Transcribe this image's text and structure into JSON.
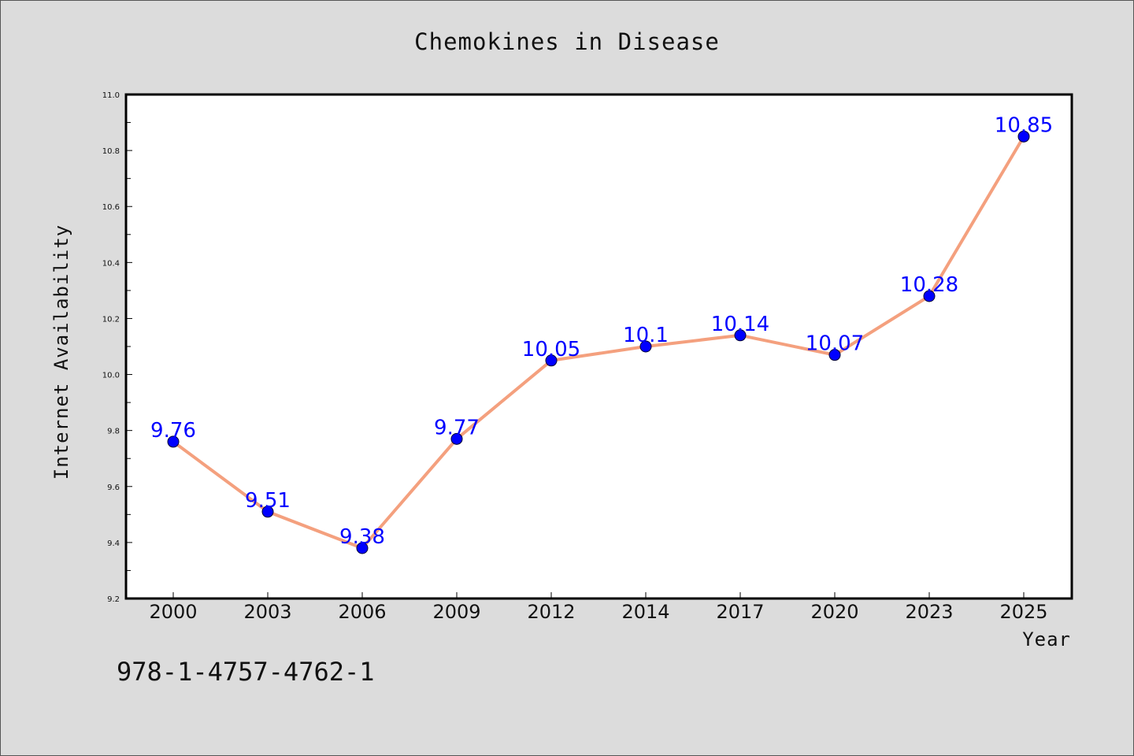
{
  "chart_data": {
    "type": "line",
    "title": "Chemokines in Disease",
    "xlabel": "Year",
    "ylabel": "Internet Availability",
    "categories": [
      "2000",
      "2003",
      "2006",
      "2009",
      "2012",
      "2014",
      "2017",
      "2020",
      "2023",
      "2025"
    ],
    "series": [
      {
        "values": [
          9.76,
          9.51,
          9.38,
          9.77,
          10.05,
          10.1,
          10.14,
          10.07,
          10.28,
          10.85
        ],
        "labels": [
          "9.76",
          "9.51",
          "9.38",
          "9.77",
          "10.05",
          "10.1",
          "10.14",
          "10.07",
          "10.28",
          "10.85"
        ]
      }
    ],
    "ylim": [
      9.2,
      11.0
    ],
    "yticks": [
      "9.2",
      "9.4",
      "9.6",
      "9.8",
      "10.0",
      "10.2",
      "10.4",
      "10.6",
      "10.8",
      "11.0"
    ],
    "grid": false,
    "legend": "none",
    "colors": {
      "line": "#f4a07e",
      "marker": "#0000ff",
      "data_label": "#0000ff",
      "background": "#dcdcdc",
      "plot_background": "#ffffff"
    }
  },
  "footer": {
    "isbn": "978-1-4757-4762-1"
  }
}
